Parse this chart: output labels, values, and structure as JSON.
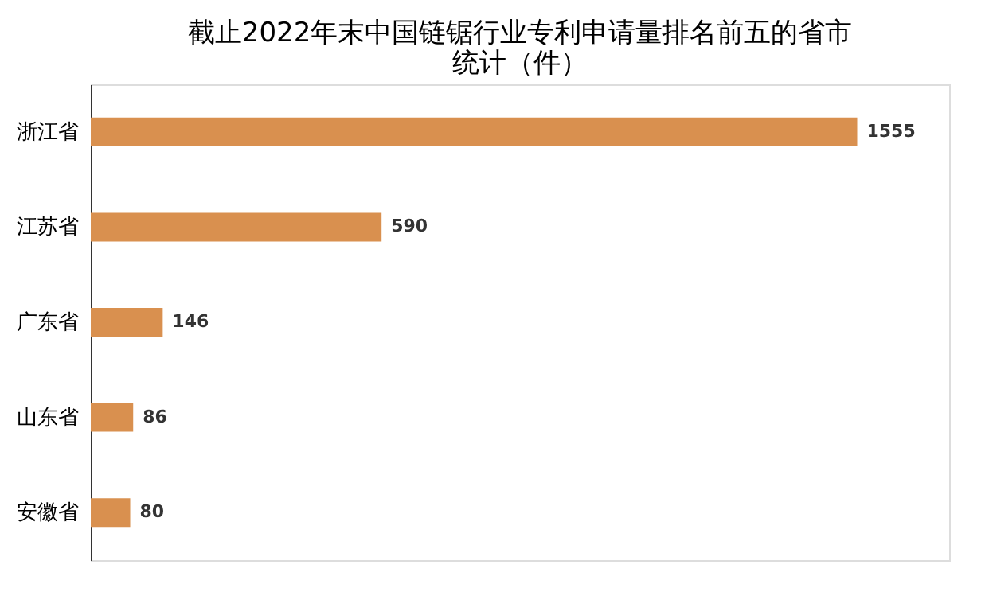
{
  "chart_data": {
    "type": "bar",
    "orientation": "horizontal",
    "title": "截止2022年末中国链锯行业专利申请量排名前五的省市统计（件）",
    "categories": [
      "浙江省",
      "江苏省",
      "广东省",
      "山东省",
      "安徽省"
    ],
    "values": [
      1555,
      590,
      146,
      86,
      80
    ],
    "color": "#d9904f",
    "data_labels": true
  }
}
